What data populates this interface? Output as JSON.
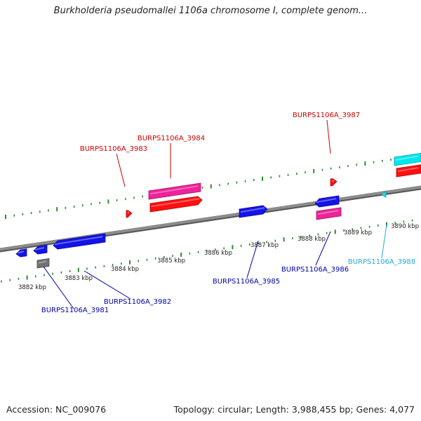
{
  "title": "Burkholderia pseudomallei 1106a chromosome I, complete genom...",
  "footer": {
    "accession": "Accession: NC_009076",
    "summary": "Topology: circular; Length: 3,988,455 bp; Genes: 4,077"
  },
  "colors": {
    "backbone": "#7a7a7a",
    "ticks": "#2e8b2e",
    "label_red": "#cc0000",
    "label_blue": "#0000aa",
    "label_cyan": "#22aadd",
    "gene_blue": "#1414e6",
    "gene_red": "#ff1010",
    "gene_magenta": "#ee2299",
    "gene_cyan": "#00e8ee",
    "gene_gray": "#707070"
  },
  "scale_labels": [
    "3882 kbp",
    "3883 kbp",
    "3884 kbp",
    "3885 kbp",
    "3886 kbp",
    "3887 kbp",
    "3888 kbp",
    "3889 kbp",
    "3890 kbp"
  ],
  "gene_labels": [
    {
      "id": "BURPS1106A_3981",
      "color": "label_blue"
    },
    {
      "id": "BURPS1106A_3982",
      "color": "label_blue"
    },
    {
      "id": "BURPS1106A_3983",
      "color": "label_red"
    },
    {
      "id": "BURPS1106A_3984",
      "color": "label_red"
    },
    {
      "id": "BURPS1106A_3985",
      "color": "label_blue"
    },
    {
      "id": "BURPS1106A_3986",
      "color": "label_blue"
    },
    {
      "id": "BURPS1106A_3987",
      "color": "label_red"
    },
    {
      "id": "BURPS1106A_3988",
      "color": "label_cyan"
    }
  ]
}
